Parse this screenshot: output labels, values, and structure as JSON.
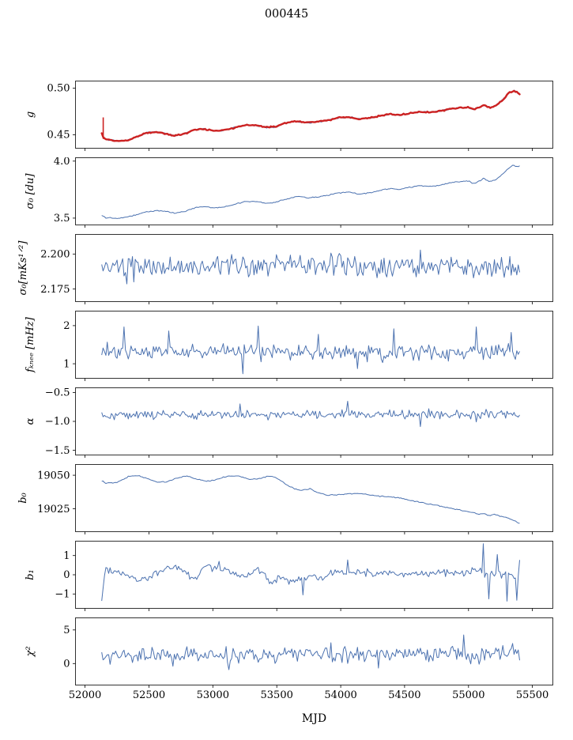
{
  "chart_data": {
    "type": "line",
    "title": "000445",
    "xlabel": "MJD",
    "xlim": [
      51925,
      55660
    ],
    "xticks": [
      52000,
      52500,
      53000,
      53500,
      54000,
      54500,
      55000,
      55500
    ],
    "x_range": [
      52130,
      55400
    ],
    "n_points": 300,
    "line_color": "#4c72b0",
    "overlay_color": "#cc2222",
    "legend": "none",
    "grid": false,
    "panels": [
      {
        "name": "g",
        "ylabel": "g",
        "ylim": [
          0.4355,
          0.5075
        ],
        "yticks": [
          0.45,
          0.5
        ],
        "ytick_labels": [
          "0.45",
          "0.50"
        ],
        "noise": 0.0007,
        "seed": 11,
        "trend": [
          [
            52130,
            0.452
          ],
          [
            52145,
            0.4465
          ],
          [
            52160,
            0.445
          ],
          [
            52250,
            0.4435
          ],
          [
            52330,
            0.444
          ],
          [
            52400,
            0.4475
          ],
          [
            52480,
            0.452
          ],
          [
            52560,
            0.453
          ],
          [
            52620,
            0.4515
          ],
          [
            52700,
            0.449
          ],
          [
            52780,
            0.451
          ],
          [
            52860,
            0.4555
          ],
          [
            52940,
            0.456
          ],
          [
            53020,
            0.454
          ],
          [
            53100,
            0.455
          ],
          [
            53180,
            0.458
          ],
          [
            53260,
            0.4605
          ],
          [
            53340,
            0.46
          ],
          [
            53420,
            0.458
          ],
          [
            53500,
            0.459
          ],
          [
            53580,
            0.463
          ],
          [
            53660,
            0.4645
          ],
          [
            53740,
            0.463
          ],
          [
            53820,
            0.464
          ],
          [
            53900,
            0.4655
          ],
          [
            53980,
            0.468
          ],
          [
            54060,
            0.469
          ],
          [
            54140,
            0.467
          ],
          [
            54220,
            0.468
          ],
          [
            54300,
            0.47
          ],
          [
            54380,
            0.472
          ],
          [
            54460,
            0.471
          ],
          [
            54540,
            0.473
          ],
          [
            54620,
            0.4745
          ],
          [
            54700,
            0.474
          ],
          [
            54780,
            0.4755
          ],
          [
            54860,
            0.4775
          ],
          [
            54940,
            0.479
          ],
          [
            55000,
            0.4795
          ],
          [
            55040,
            0.477
          ],
          [
            55080,
            0.479
          ],
          [
            55120,
            0.482
          ],
          [
            55160,
            0.479
          ],
          [
            55200,
            0.48
          ],
          [
            55240,
            0.484
          ],
          [
            55280,
            0.489
          ],
          [
            55320,
            0.495
          ],
          [
            55350,
            0.497
          ],
          [
            55380,
            0.4955
          ],
          [
            55400,
            0.494
          ]
        ],
        "overlay": {
          "seed": 12,
          "noise": 0.0005,
          "width": 2.4,
          "spike": {
            "x": 52142,
            "y": [
              0.4455,
              0.4685
            ]
          }
        }
      },
      {
        "name": "sigma0-du",
        "ylabel": "σ₀ [du]",
        "ylim": [
          3.44,
          4.03
        ],
        "yticks": [
          3.5,
          4.0
        ],
        "ytick_labels": [
          "3.5",
          "4.0"
        ],
        "noise": 0.0035,
        "seed": 22,
        "trend": [
          [
            52130,
            3.525
          ],
          [
            52160,
            3.505
          ],
          [
            52250,
            3.5
          ],
          [
            52330,
            3.51
          ],
          [
            52400,
            3.53
          ],
          [
            52480,
            3.555
          ],
          [
            52560,
            3.565
          ],
          [
            52620,
            3.56
          ],
          [
            52700,
            3.545
          ],
          [
            52780,
            3.56
          ],
          [
            52860,
            3.59
          ],
          [
            52940,
            3.6
          ],
          [
            53020,
            3.59
          ],
          [
            53100,
            3.6
          ],
          [
            53180,
            3.625
          ],
          [
            53260,
            3.645
          ],
          [
            53340,
            3.645
          ],
          [
            53420,
            3.63
          ],
          [
            53500,
            3.64
          ],
          [
            53580,
            3.67
          ],
          [
            53660,
            3.69
          ],
          [
            53740,
            3.68
          ],
          [
            53820,
            3.685
          ],
          [
            53900,
            3.7
          ],
          [
            53980,
            3.72
          ],
          [
            54060,
            3.73
          ],
          [
            54140,
            3.71
          ],
          [
            54220,
            3.72
          ],
          [
            54300,
            3.74
          ],
          [
            54380,
            3.76
          ],
          [
            54460,
            3.75
          ],
          [
            54540,
            3.77
          ],
          [
            54620,
            3.785
          ],
          [
            54700,
            3.78
          ],
          [
            54780,
            3.79
          ],
          [
            54860,
            3.81
          ],
          [
            54940,
            3.82
          ],
          [
            55000,
            3.825
          ],
          [
            55040,
            3.8
          ],
          [
            55080,
            3.82
          ],
          [
            55120,
            3.85
          ],
          [
            55160,
            3.82
          ],
          [
            55200,
            3.83
          ],
          [
            55240,
            3.86
          ],
          [
            55280,
            3.9
          ],
          [
            55320,
            3.945
          ],
          [
            55350,
            3.965
          ],
          [
            55380,
            3.955
          ],
          [
            55400,
            3.96
          ]
        ]
      },
      {
        "name": "sigma0-mks",
        "ylabel": "σ₀[mKs¹ᐟ²]",
        "ylim": [
          2.166,
          2.214
        ],
        "yticks": [
          2.175,
          2.2
        ],
        "ytick_labels": [
          "2.175",
          "2.200"
        ],
        "noise": 0.0055,
        "seed": 33,
        "trend": [
          [
            52130,
            2.1895
          ],
          [
            53000,
            2.1915
          ],
          [
            54000,
            2.1915
          ],
          [
            55400,
            2.1905
          ]
        ],
        "spikes": [
          {
            "x": 53995,
            "dy": 0.011
          },
          {
            "x": 52330,
            "dy": -0.009
          },
          {
            "x": 54620,
            "dy": 0.008
          },
          {
            "x": 55280,
            "dy": -0.009
          },
          {
            "x": 52890,
            "dy": -0.008
          }
        ]
      },
      {
        "name": "f-knee",
        "ylabel": "fₖₙₑₑ [mHz]",
        "ylim": [
          0.62,
          2.38
        ],
        "yticks": [
          1,
          2
        ],
        "ytick_labels": [
          "1",
          "2"
        ],
        "noise": 0.16,
        "seed": 44,
        "trend": [
          [
            52130,
            1.32
          ],
          [
            55400,
            1.3
          ]
        ],
        "spikes": [
          {
            "x": 52300,
            "dy": 0.55
          },
          {
            "x": 52650,
            "dy": 0.5
          },
          {
            "x": 53360,
            "dy": 0.6
          },
          {
            "x": 53830,
            "dy": 0.5
          },
          {
            "x": 54420,
            "dy": 0.5
          },
          {
            "x": 55060,
            "dy": 0.55
          },
          {
            "x": 55330,
            "dy": 0.5
          },
          {
            "x": 53240,
            "dy": -0.45
          },
          {
            "x": 54130,
            "dy": -0.4
          }
        ]
      },
      {
        "name": "alpha",
        "ylabel": "α",
        "ylim": [
          -1.58,
          -0.42
        ],
        "yticks": [
          -0.5,
          -1.0,
          -1.5
        ],
        "ytick_labels": [
          "−0.5",
          "−1.0",
          "−1.5"
        ],
        "noise": 0.055,
        "seed": 55,
        "trend": [
          [
            52130,
            -0.885
          ],
          [
            55400,
            -0.875
          ]
        ],
        "spikes": [
          {
            "x": 54620,
            "dy": -0.22
          },
          {
            "x": 55060,
            "dy": -0.18
          },
          {
            "x": 53210,
            "dy": 0.15
          },
          {
            "x": 54060,
            "dy": 0.16
          }
        ]
      },
      {
        "name": "b0",
        "ylabel": "b₀",
        "ylim": [
          19008,
          19058
        ],
        "yticks": [
          19025,
          19050
        ],
        "ytick_labels": [
          "19025",
          "19050"
        ],
        "noise": 0.3,
        "seed": 66,
        "trend": [
          [
            52130,
            19046
          ],
          [
            52170,
            19044
          ],
          [
            52260,
            19045
          ],
          [
            52340,
            19049
          ],
          [
            52400,
            19050
          ],
          [
            52480,
            19048
          ],
          [
            52560,
            19045
          ],
          [
            52640,
            19045
          ],
          [
            52720,
            19048
          ],
          [
            52800,
            19049.5
          ],
          [
            52880,
            19047
          ],
          [
            52960,
            19045.5
          ],
          [
            53040,
            19047
          ],
          [
            53120,
            19049.5
          ],
          [
            53200,
            19049.5
          ],
          [
            53280,
            19047
          ],
          [
            53360,
            19047.5
          ],
          [
            53440,
            19049.5
          ],
          [
            53500,
            19048
          ],
          [
            53560,
            19044
          ],
          [
            53640,
            19040
          ],
          [
            53700,
            19038.5
          ],
          [
            53760,
            19040
          ],
          [
            53820,
            19037
          ],
          [
            53900,
            19035
          ],
          [
            53980,
            19035.5
          ],
          [
            54060,
            19036
          ],
          [
            54140,
            19036.5
          ],
          [
            54220,
            19035.5
          ],
          [
            54300,
            19034.5
          ],
          [
            54380,
            19034
          ],
          [
            54460,
            19033
          ],
          [
            54540,
            19031.5
          ],
          [
            54620,
            19030
          ],
          [
            54700,
            19028.5
          ],
          [
            54780,
            19027
          ],
          [
            54860,
            19025.5
          ],
          [
            54940,
            19024
          ],
          [
            55020,
            19022.5
          ],
          [
            55080,
            19021
          ],
          [
            55120,
            19021.5
          ],
          [
            55160,
            19020
          ],
          [
            55200,
            19021
          ],
          [
            55240,
            19019.5
          ],
          [
            55280,
            19019
          ],
          [
            55320,
            19017.5
          ],
          [
            55360,
            19016
          ],
          [
            55400,
            19014.5
          ]
        ]
      },
      {
        "name": "b1",
        "ylabel": "b₁",
        "ylim": [
          -1.75,
          1.75
        ],
        "yticks": [
          -1,
          0,
          1
        ],
        "ytick_labels": [
          "−1",
          "0",
          "1"
        ],
        "noise": 0.14,
        "seed": 77,
        "trend": [
          [
            52130,
            -1.3
          ],
          [
            52160,
            0.35
          ],
          [
            52250,
            0.2
          ],
          [
            52350,
            -0.1
          ],
          [
            52450,
            -0.25
          ],
          [
            52550,
            0.1
          ],
          [
            52650,
            0.35
          ],
          [
            52750,
            0.3
          ],
          [
            52850,
            -0.2
          ],
          [
            52950,
            0.45
          ],
          [
            53050,
            0.3
          ],
          [
            53150,
            0.1
          ],
          [
            53250,
            -0.1
          ],
          [
            53350,
            0.2
          ],
          [
            53450,
            -0.3
          ],
          [
            53550,
            -0.15
          ],
          [
            53650,
            -0.4
          ],
          [
            53750,
            0.0
          ],
          [
            53850,
            -0.3
          ],
          [
            53950,
            0.2
          ],
          [
            54050,
            0.15
          ],
          [
            54150,
            0.1
          ],
          [
            54250,
            0.05
          ],
          [
            54350,
            0.1
          ],
          [
            54450,
            0.0
          ],
          [
            54550,
            0.1
          ],
          [
            54650,
            0.05
          ],
          [
            54750,
            0.15
          ],
          [
            54850,
            0.1
          ],
          [
            54950,
            0.0
          ],
          [
            55050,
            0.2
          ],
          [
            55100,
            0.1
          ],
          [
            55200,
            0.0
          ],
          [
            55300,
            0.1
          ],
          [
            55400,
            -0.2
          ]
        ],
        "spikes": [
          {
            "x": 53050,
            "dy": 0.5
          },
          {
            "x": 53700,
            "dy": -0.8
          },
          {
            "x": 54050,
            "dy": 0.7
          },
          {
            "x": 55120,
            "dy": 1.5
          },
          {
            "x": 55160,
            "dy": -1.2
          },
          {
            "x": 55230,
            "dy": 1.1
          },
          {
            "x": 55300,
            "dy": -1.3
          },
          {
            "x": 55380,
            "dy": -1.1
          },
          {
            "x": 55400,
            "dy": 0.8
          }
        ]
      },
      {
        "name": "chi2",
        "ylabel": "χ²",
        "ylim": [
          -3.2,
          6.8
        ],
        "yticks": [
          0,
          5
        ],
        "ytick_labels": [
          "0",
          "5"
        ],
        "noise": 0.85,
        "seed": 88,
        "trend": [
          [
            52130,
            1.2
          ],
          [
            55400,
            1.5
          ]
        ],
        "spikes": [
          {
            "x": 52690,
            "dy": -2.6
          },
          {
            "x": 53130,
            "dy": -2.2
          },
          {
            "x": 53920,
            "dy": 1.8
          },
          {
            "x": 54290,
            "dy": -1.8
          },
          {
            "x": 54960,
            "dy": 2.0
          },
          {
            "x": 55340,
            "dy": 1.8
          }
        ]
      }
    ]
  }
}
